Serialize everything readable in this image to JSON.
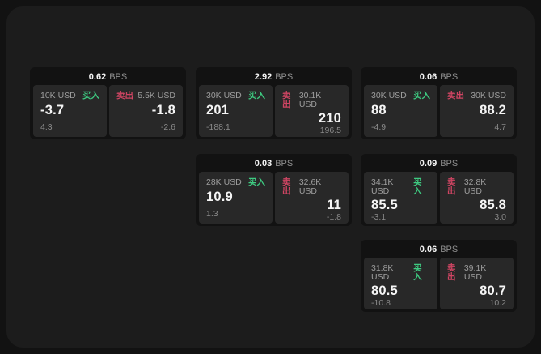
{
  "labels": {
    "bps_unit": "BPS",
    "buy": "买入",
    "sell": "卖出"
  },
  "colors": {
    "background": "#121212",
    "surface": "#1c1c1c",
    "card": "#121212",
    "panel": "#282828",
    "buy": "#3ecb81",
    "sell": "#cf4563"
  },
  "cards": [
    {
      "bps": "0.62",
      "buy": {
        "amount": "10K USD",
        "price": "-3.7",
        "delta": "4.3"
      },
      "sell": {
        "amount": "5.5K USD",
        "price": "-1.8",
        "delta": "-2.6"
      }
    },
    {
      "bps": "2.92",
      "buy": {
        "amount": "30K USD",
        "price": "201",
        "delta": "-188.1"
      },
      "sell": {
        "amount": "30.1K USD",
        "price": "210",
        "delta": "196.5"
      }
    },
    {
      "bps": "0.06",
      "buy": {
        "amount": "30K USD",
        "price": "88",
        "delta": "-4.9"
      },
      "sell": {
        "amount": "30K USD",
        "price": "88.2",
        "delta": "4.7"
      }
    },
    {
      "bps": "0.03",
      "buy": {
        "amount": "28K USD",
        "price": "10.9",
        "delta": "1.3"
      },
      "sell": {
        "amount": "32.6K USD",
        "price": "11",
        "delta": "-1.8"
      }
    },
    {
      "bps": "0.09",
      "buy": {
        "amount": "34.1K USD",
        "price": "85.5",
        "delta": "-3.1"
      },
      "sell": {
        "amount": "32.8K USD",
        "price": "85.8",
        "delta": "3.0"
      }
    },
    {
      "bps": "0.06",
      "buy": {
        "amount": "31.8K USD",
        "price": "80.5",
        "delta": "-10.8"
      },
      "sell": {
        "amount": "39.1K USD",
        "price": "80.7",
        "delta": "10.2"
      }
    }
  ]
}
